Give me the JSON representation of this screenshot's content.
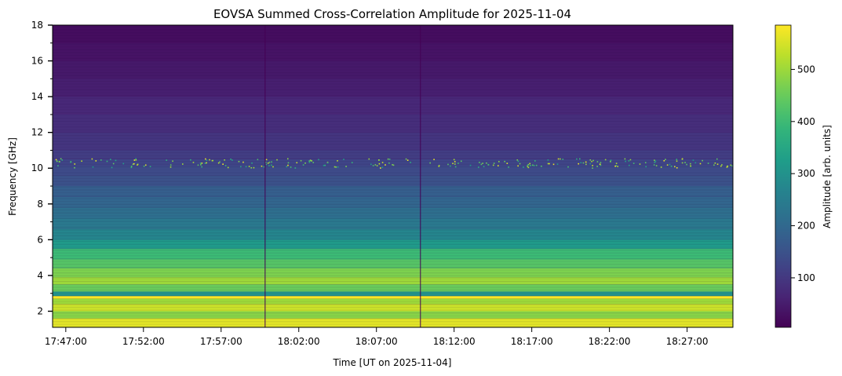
{
  "chart_data": {
    "type": "heatmap",
    "title": "EOVSA Summed Cross-Correlation Amplitude for 2025-11-04",
    "xlabel": "Time [UT on 2025-11-04]",
    "ylabel": "Frequency [GHz]",
    "colorbar_label": "Amplitude [arb. units]",
    "colormap": "viridis",
    "x_ticks": [
      "17:47:00",
      "17:52:00",
      "17:57:00",
      "18:02:00",
      "18:07:00",
      "18:12:00",
      "18:17:00",
      "18:22:00",
      "18:27:00"
    ],
    "y_ticks": [
      "2",
      "4",
      "6",
      "8",
      "10",
      "12",
      "14",
      "16",
      "18"
    ],
    "colorbar_ticks": [
      "100",
      "200",
      "300",
      "400",
      "500"
    ],
    "xlim": [
      "17:46:09",
      "18:29:57"
    ],
    "ylim": [
      1.1,
      18.0
    ],
    "clim": [
      5,
      585
    ],
    "frequency_bands_ghz": [
      {
        "f0": 1.1,
        "f1": 1.6,
        "amplitude": 560
      },
      {
        "f0": 1.6,
        "f1": 2.0,
        "amplitude": 480
      },
      {
        "f0": 2.0,
        "f1": 2.4,
        "amplitude": 540
      },
      {
        "f0": 2.4,
        "f1": 2.7,
        "amplitude": 500
      },
      {
        "f0": 2.7,
        "f1": 2.85,
        "amplitude": 585
      },
      {
        "f0": 2.85,
        "f1": 3.1,
        "amplitude": 300
      },
      {
        "f0": 3.1,
        "f1": 3.5,
        "amplitude": 450
      },
      {
        "f0": 3.5,
        "f1": 3.9,
        "amplitude": 500
      },
      {
        "f0": 3.9,
        "f1": 4.4,
        "amplitude": 470
      },
      {
        "f0": 4.4,
        "f1": 4.9,
        "amplitude": 430
      },
      {
        "f0": 4.9,
        "f1": 5.5,
        "amplitude": 400
      },
      {
        "f0": 5.5,
        "f1": 6.0,
        "amplitude": 320
      },
      {
        "f0": 6.0,
        "f1": 6.6,
        "amplitude": 270
      },
      {
        "f0": 6.6,
        "f1": 7.2,
        "amplitude": 240
      },
      {
        "f0": 7.2,
        "f1": 7.8,
        "amplitude": 215
      },
      {
        "f0": 7.8,
        "f1": 8.4,
        "amplitude": 195
      },
      {
        "f0": 8.4,
        "f1": 9.0,
        "amplitude": 180
      },
      {
        "f0": 9.0,
        "f1": 9.6,
        "amplitude": 150
      },
      {
        "f0": 9.6,
        "f1": 10.1,
        "amplitude": 135
      },
      {
        "f0": 10.1,
        "f1": 10.5,
        "amplitude": 125
      },
      {
        "f0": 10.5,
        "f1": 11.0,
        "amplitude": 110
      },
      {
        "f0": 11.0,
        "f1": 12.0,
        "amplitude": 95
      },
      {
        "f0": 12.0,
        "f1": 13.0,
        "amplitude": 80
      },
      {
        "f0": 13.0,
        "f1": 14.0,
        "amplitude": 70
      },
      {
        "f0": 14.0,
        "f1": 15.0,
        "amplitude": 55
      },
      {
        "f0": 15.0,
        "f1": 16.0,
        "amplitude": 45
      },
      {
        "f0": 16.0,
        "f1": 17.0,
        "amplitude": 35
      },
      {
        "f0": 17.0,
        "f1": 18.0,
        "amplitude": 25
      }
    ],
    "data_gaps_ut": [
      "17:59:50",
      "18:09:50"
    ],
    "rfi_band_ghz": 10.3
  }
}
